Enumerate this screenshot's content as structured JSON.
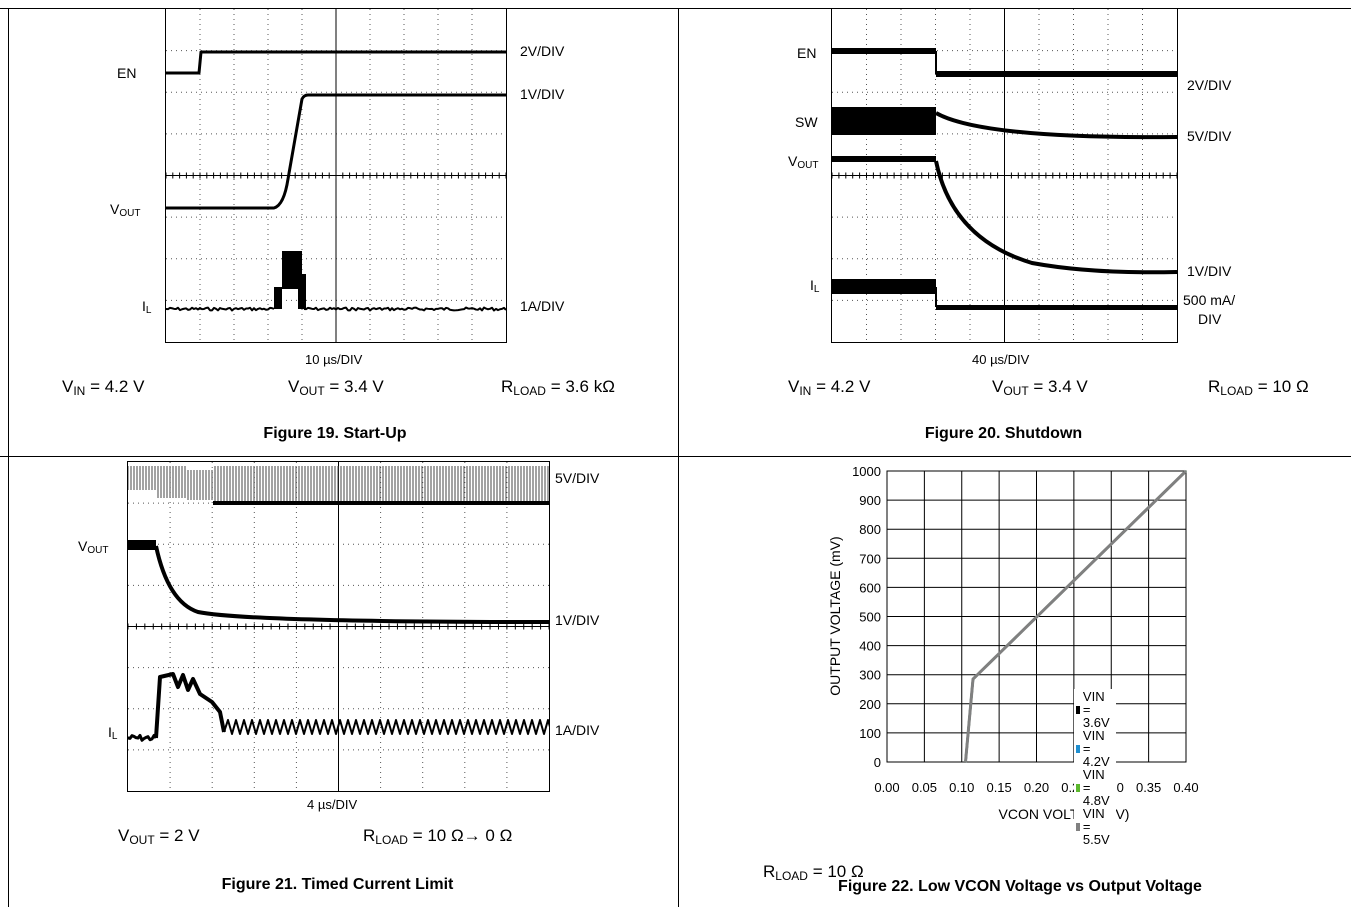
{
  "top_fragment": "",
  "fig19": {
    "caption": "Figure 19. Start-Up",
    "timebase": "10 µs/DIV",
    "ch_en": "EN",
    "ch_vout": "V",
    "ch_vout_sub": "OUT",
    "ch_il": "I",
    "ch_il_sub": "L",
    "scale_en": "2V/DIV",
    "scale_vout": "1V/DIV",
    "scale_il": "1A/DIV",
    "p1_a": "V",
    "p1_sub": "IN",
    "p1_b": " = 4.2 V",
    "p2_a": "V",
    "p2_sub": "OUT",
    "p2_b": " = 3.4 V",
    "p3_a": "R",
    "p3_sub": "LOAD",
    "p3_b": " = 3.6 kΩ"
  },
  "fig20": {
    "caption": "Figure 20. Shutdown",
    "timebase": "40 µs/DIV",
    "ch_en": "EN",
    "ch_sw": "SW",
    "ch_vout": "V",
    "ch_vout_sub": "OUT",
    "ch_il": "I",
    "ch_il_sub": "L",
    "scale_en": "2V/DIV",
    "scale_sw": "5V/DIV",
    "scale_vout": "1V/DIV",
    "scale_il_1": "500 mA/",
    "scale_il_2": "DIV",
    "p1_a": "V",
    "p1_sub": "IN",
    "p1_b": " = 4.2 V",
    "p2_a": "V",
    "p2_sub": "OUT",
    "p2_b": " = 3.4 V",
    "p3_a": "R",
    "p3_sub": "LOAD",
    "p3_b": " = 10 Ω"
  },
  "fig21": {
    "caption": "Figure 21. Timed Current Limit",
    "timebase": "4 µs/DIV",
    "ch_vout": "V",
    "ch_vout_sub": "OUT",
    "ch_il": "I",
    "ch_il_sub": "L",
    "scale_sw": "5V/DIV",
    "scale_vout": "1V/DIV",
    "scale_il": "1A/DIV",
    "p1_a": "V",
    "p1_sub": "OUT",
    "p1_b": " = 2 V",
    "p2_a": "R",
    "p2_sub": "LOAD",
    "p2_b": " = 10 Ω→ 0 Ω"
  },
  "fig22": {
    "caption": "Figure 22. Low VCON Voltage vs Output Voltage",
    "p1_a": "R",
    "p1_sub": "LOAD",
    "p1_b": " = 10 Ω"
  },
  "chart_data": {
    "type": "line",
    "title": "Figure 22. Low VCON Voltage vs Output Voltage",
    "xlabel": "VCON VOLTAGE (V)",
    "ylabel": "OUTPUT VOLTAGE (mV)",
    "xlim": [
      0,
      0.4
    ],
    "ylim": [
      0,
      1000
    ],
    "xticks": [
      "0.00",
      "0.05",
      "0.10",
      "0.15",
      "0.20",
      "0.25",
      "0.30",
      "0.35",
      "0.40"
    ],
    "yticks": [
      "0",
      "100",
      "200",
      "300",
      "400",
      "500",
      "600",
      "700",
      "800",
      "900",
      "1000"
    ],
    "grid": true,
    "legend_position": "bottom-right",
    "series": [
      {
        "name": "VIN = 3.6V",
        "color": "#000000",
        "x": [
          0.105,
          0.115,
          0.4
        ],
        "y": [
          0,
          285,
          1000
        ]
      },
      {
        "name": "VIN = 4.2V",
        "color": "#1f8fd0",
        "x": [
          0.105,
          0.115,
          0.4
        ],
        "y": [
          0,
          285,
          1000
        ]
      },
      {
        "name": "VIN = 4.8V",
        "color": "#5cb82e",
        "x": [
          0.105,
          0.115,
          0.4
        ],
        "y": [
          0,
          285,
          1000
        ]
      },
      {
        "name": "VIN = 5.5V",
        "color": "#808080",
        "x": [
          0.105,
          0.115,
          0.4
        ],
        "y": [
          0,
          285,
          1000
        ]
      }
    ]
  }
}
